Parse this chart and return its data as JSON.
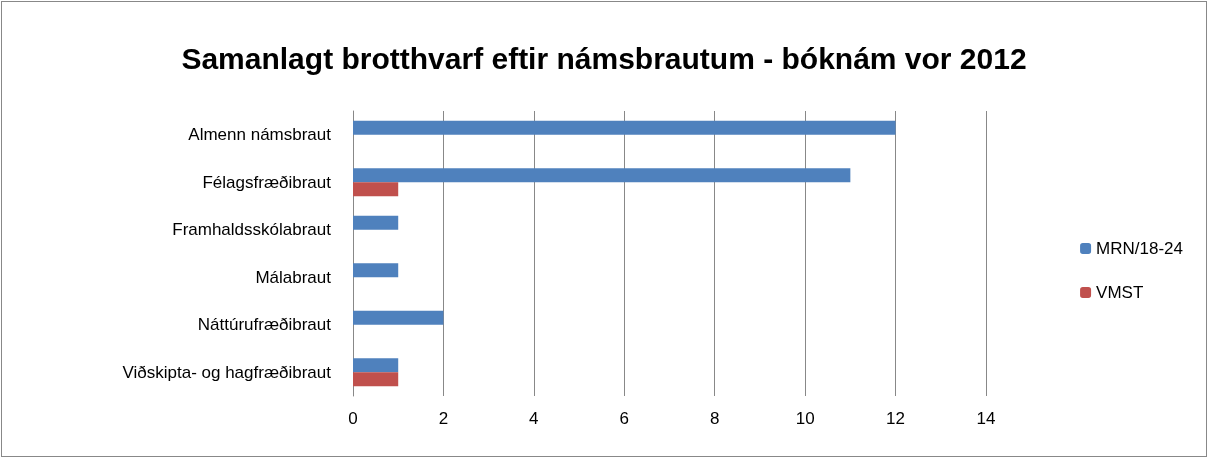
{
  "chart_data": {
    "type": "bar",
    "orientation": "horizontal",
    "title": "Samanlagt brotthvarf eftir námsbrautum - bóknám vor 2012",
    "categories": [
      "Almenn námsbraut",
      "Félagsfræðibraut",
      "Framhaldsskólabraut",
      "Málabraut",
      "Náttúrufræðibraut",
      "Viðskipta- og hagfræðibraut"
    ],
    "series": [
      {
        "name": "MRN/18-24",
        "color": "#4f81bd",
        "values": [
          12,
          11,
          1,
          1,
          2,
          1
        ]
      },
      {
        "name": "VMST",
        "color": "#c0504d",
        "values": [
          0,
          1,
          0,
          0,
          0,
          1
        ]
      }
    ],
    "xlim": [
      0,
      14
    ],
    "xticks": [
      0,
      2,
      4,
      6,
      8,
      10,
      12,
      14
    ],
    "grid": "x",
    "legend": "right"
  }
}
